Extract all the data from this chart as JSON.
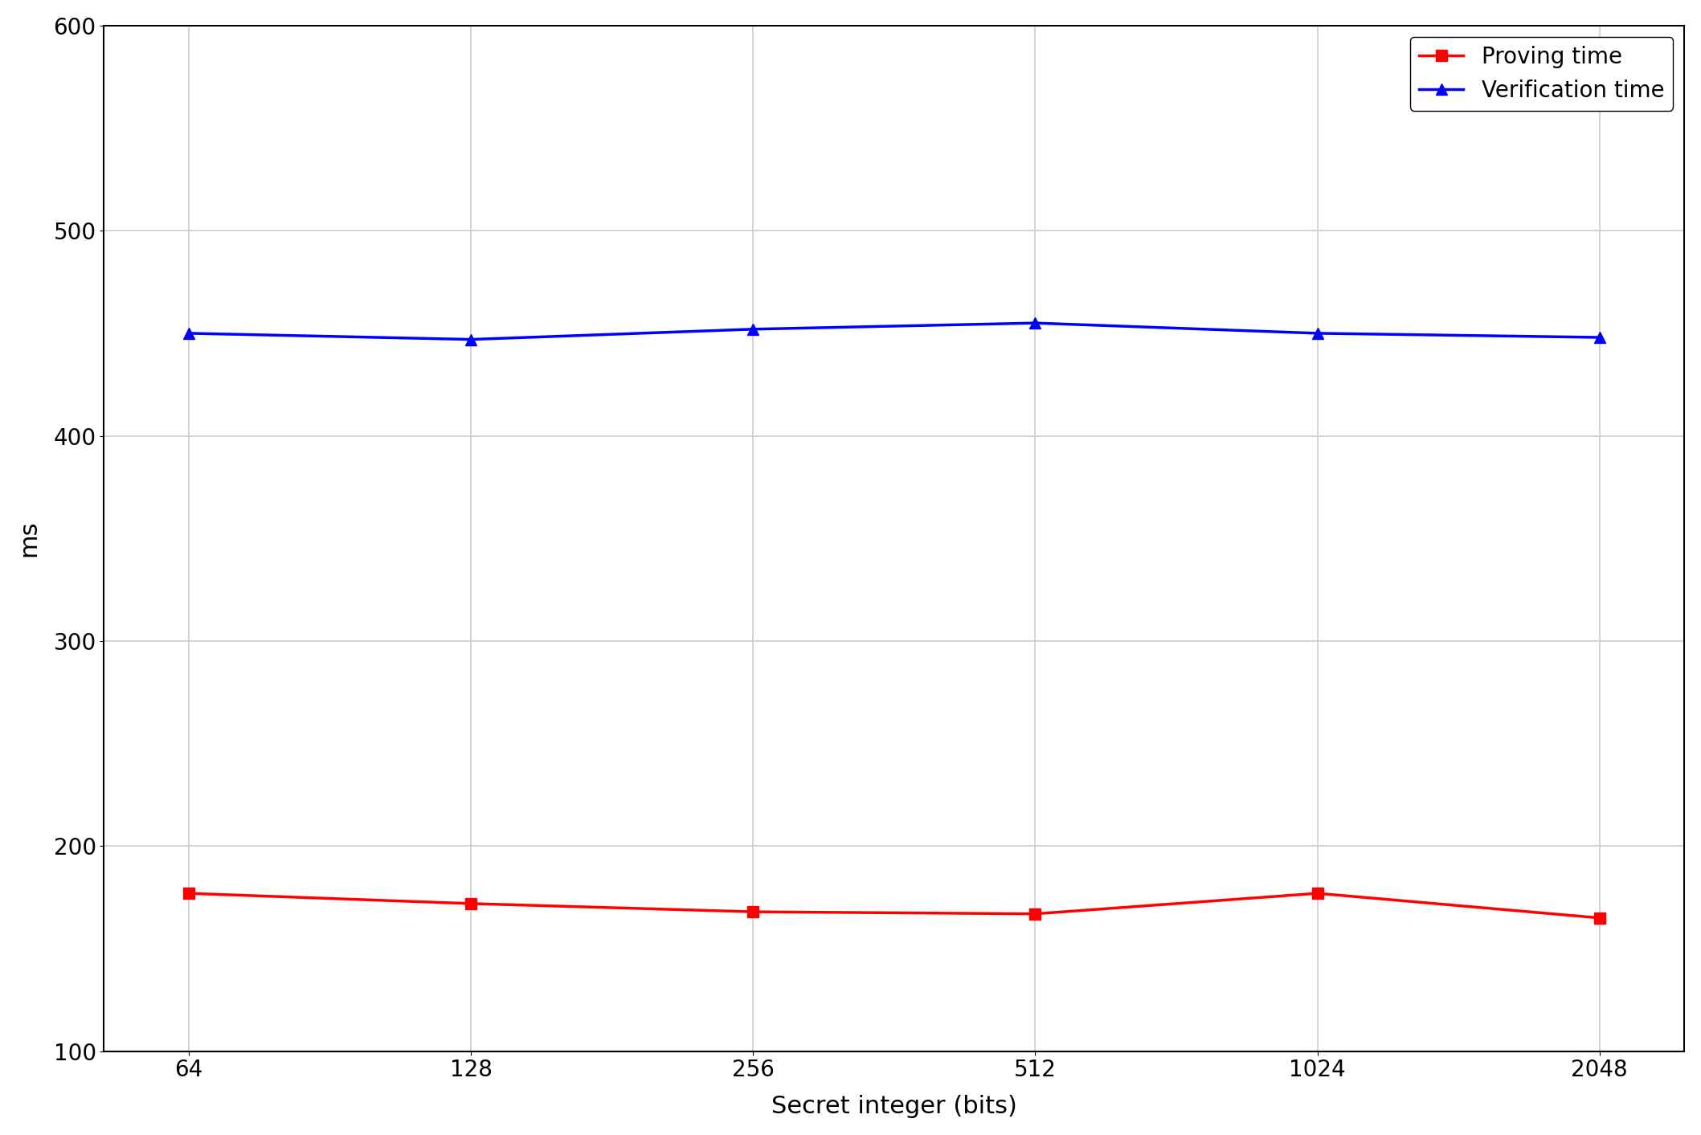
{
  "x_labels": [
    "64",
    "128",
    "256",
    "512",
    "1024",
    "2048"
  ],
  "x_positions": [
    0,
    1,
    2,
    3,
    4,
    5
  ],
  "proving_time": [
    177,
    172,
    168,
    167,
    177,
    165
  ],
  "verification_time": [
    450,
    447,
    452,
    455,
    450,
    448
  ],
  "proving_color": "#ff0000",
  "verification_color": "#0000ff",
  "xlabel": "Secret integer (bits)",
  "ylabel": "ms",
  "ylim": [
    100,
    600
  ],
  "yticks": [
    100,
    200,
    300,
    400,
    500,
    600
  ],
  "legend_proving": "Proving time",
  "legend_verification": "Verification time",
  "grid_color": "#cccccc",
  "background_color": "#ffffff",
  "linewidth": 2.5,
  "markersize": 10,
  "fontsize_axis_label": 22,
  "fontsize_tick": 20,
  "fontsize_legend": 20
}
